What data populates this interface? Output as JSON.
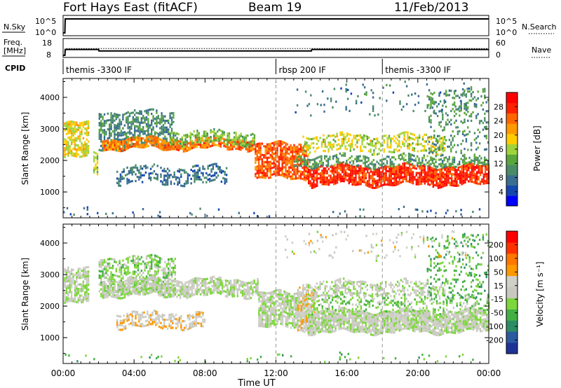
{
  "header": {
    "station": "Fort Hays East (fitACF)",
    "beam": "Beam 19",
    "date": "11/Feb/2013"
  },
  "labels": {
    "nsky": "N.Sky",
    "nsearch": "N.Search",
    "freq_l1": "Freq.",
    "freq_l2": "[MHz]",
    "nave": "Nave",
    "cpid": "CPID",
    "x_title": "Time UT"
  },
  "chart_data": [
    {
      "type": "line",
      "panel": "noise",
      "ylabel_left": "N.Sky",
      "ylabel_right": "N.Search",
      "ytick_labels_left": [
        "10^5",
        "10^0"
      ],
      "ytick_labels_right": [
        "10^5",
        "10^0"
      ],
      "series": [
        {
          "name": "N.Sky",
          "style": "solid",
          "x_hours": [
            0.0,
            0.1,
            0.12,
            6,
            12,
            18,
            24
          ],
          "values": [
            1,
            1,
            100000,
            100000,
            100000,
            100000,
            100000
          ]
        }
      ]
    },
    {
      "type": "line",
      "panel": "frequency",
      "ylabel_left": "Freq. [MHz]",
      "ylabel_right": "Nave",
      "ytick_labels_left": [
        "18",
        "8"
      ],
      "ytick_labels_right": [
        "60",
        "0"
      ],
      "series": [
        {
          "name": "Freq.",
          "style": "solid",
          "x_hours": [
            0,
            0.1,
            0.12,
            2.0,
            2.02,
            14.0,
            14.02,
            24
          ],
          "values": [
            8,
            8,
            12,
            12,
            11,
            11,
            12,
            12
          ]
        },
        {
          "name": "Nave",
          "style": "dotted",
          "x_hours": [
            0,
            0.12,
            0.14,
            24
          ],
          "values": [
            0,
            0,
            28,
            28
          ]
        }
      ]
    },
    {
      "type": "table",
      "panel": "cpid",
      "label": "CPID",
      "segments": [
        {
          "start_hour": 0,
          "label": "themis -3300 IF"
        },
        {
          "start_hour": 12,
          "label": "rbsp 200 IF"
        },
        {
          "start_hour": 18,
          "label": "themis -3300 IF"
        }
      ]
    },
    {
      "type": "heatmap",
      "panel": "power",
      "ylabel": "Slant Range [km]",
      "xlabel": "Time UT",
      "xlim": [
        0,
        24
      ],
      "ylim": [
        180,
        4600
      ],
      "yticks": [
        1000,
        2000,
        3000,
        4000
      ],
      "colorbar": {
        "label": "Power [dB]",
        "ticks": [
          4,
          8,
          12,
          16,
          20,
          24,
          28
        ],
        "colors": [
          "#0000ff",
          "#1447b0",
          "#3a6e91",
          "#4b8c68",
          "#5aa63c",
          "#9fd33c",
          "#ffcc00",
          "#ff9900",
          "#ff6600",
          "#ff2200",
          "#ff0000"
        ]
      },
      "value_range": [
        0,
        30
      ],
      "bands": [
        {
          "start": 0.05,
          "end": 1.4,
          "top": 3150,
          "bottom": 2050,
          "value": 17,
          "density": 0.72
        },
        {
          "start": 1.7,
          "end": 1.95,
          "top": 2200,
          "bottom": 1550,
          "value": 15,
          "density": 0.6
        },
        {
          "start": 2.0,
          "end": 6.2,
          "top": 3500,
          "bottom": 2350,
          "value": 9,
          "density": 0.6
        },
        {
          "start": 2.2,
          "end": 10.8,
          "top": 2650,
          "bottom": 2350,
          "value": 22,
          "density": 0.8
        },
        {
          "start": 3.0,
          "end": 9.2,
          "top": 1800,
          "bottom": 1250,
          "value": 7,
          "density": 0.45
        },
        {
          "start": 6.0,
          "end": 10.8,
          "top": 2900,
          "bottom": 2500,
          "value": 13,
          "density": 0.55
        },
        {
          "start": 10.8,
          "end": 13.8,
          "top": 2500,
          "bottom": 1400,
          "value": 24,
          "density": 0.75
        },
        {
          "start": 13.8,
          "end": 24.0,
          "top": 1800,
          "bottom": 1200,
          "value": 26,
          "density": 0.85
        },
        {
          "start": 13.0,
          "end": 24.0,
          "top": 2100,
          "bottom": 1800,
          "value": 11,
          "density": 0.5
        },
        {
          "start": 13.5,
          "end": 21.5,
          "top": 2750,
          "bottom": 2250,
          "value": 16,
          "density": 0.5
        },
        {
          "start": 20.5,
          "end": 24.0,
          "top": 4200,
          "bottom": 2200,
          "value": 10,
          "density": 0.22
        },
        {
          "start": 12.5,
          "end": 23.0,
          "top": 4400,
          "bottom": 3500,
          "value": 8,
          "density": 0.06
        },
        {
          "start": 0.0,
          "end": 24.0,
          "top": 400,
          "bottom": 180,
          "value": 6,
          "density": 0.04
        }
      ]
    },
    {
      "type": "heatmap",
      "panel": "velocity",
      "ylabel": "Slant Range [km]",
      "xlabel": "Time UT",
      "xlim": [
        0,
        24
      ],
      "ylim": [
        180,
        4600
      ],
      "yticks": [
        1000,
        2000,
        3000,
        4000
      ],
      "xtick_labels": [
        "00:00",
        "04:00",
        "08:00",
        "12:00",
        "16:00",
        "20:00",
        "00:00"
      ],
      "colorbar": {
        "label": "Velocity [m s⁻¹]",
        "ticks": [
          200,
          100,
          50,
          15,
          -15,
          -50,
          -100,
          -200
        ],
        "colors": [
          "#1e3296",
          "#2b5aa0",
          "#2d8c64",
          "#44b044",
          "#7dd63c",
          "#c8c8c0",
          "#d0d0c8",
          "#ff9900",
          "#ff7700",
          "#ff3300",
          "#ff0000"
        ]
      },
      "value_range": [
        -200,
        200
      ],
      "bands": [
        {
          "start": 0.05,
          "end": 1.4,
          "top": 3150,
          "bottom": 2050,
          "value": 0,
          "density": 0.75
        },
        {
          "start": 2.0,
          "end": 6.3,
          "top": 3500,
          "bottom": 2350,
          "value": -30,
          "density": 0.55
        },
        {
          "start": 2.2,
          "end": 11.0,
          "top": 2800,
          "bottom": 2300,
          "value": 0,
          "density": 0.8
        },
        {
          "start": 3.0,
          "end": 8.0,
          "top": 1750,
          "bottom": 1300,
          "value": 35,
          "density": 0.6
        },
        {
          "start": 11.0,
          "end": 13.8,
          "top": 2400,
          "bottom": 1300,
          "value": 0,
          "density": 0.8
        },
        {
          "start": 13.2,
          "end": 14.2,
          "top": 2600,
          "bottom": 1200,
          "value": 40,
          "density": 0.6
        },
        {
          "start": 13.8,
          "end": 24.0,
          "top": 1800,
          "bottom": 1150,
          "value": 0,
          "density": 0.9
        },
        {
          "start": 14.0,
          "end": 24.0,
          "top": 2250,
          "bottom": 1800,
          "value": -40,
          "density": 0.35
        },
        {
          "start": 13.5,
          "end": 21.5,
          "top": 2750,
          "bottom": 2300,
          "value": 0,
          "density": 0.5
        },
        {
          "start": 20.5,
          "end": 24.0,
          "top": 4200,
          "bottom": 2200,
          "value": -70,
          "density": 0.2
        },
        {
          "start": 12.5,
          "end": 23.0,
          "top": 4400,
          "bottom": 3500,
          "value": 20,
          "density": 0.06
        },
        {
          "start": 0.0,
          "end": 24.0,
          "top": 400,
          "bottom": 180,
          "value": -60,
          "density": 0.04
        }
      ]
    }
  ],
  "legend_samples": {
    "nsearch": "dotted",
    "nave": "dotted"
  }
}
